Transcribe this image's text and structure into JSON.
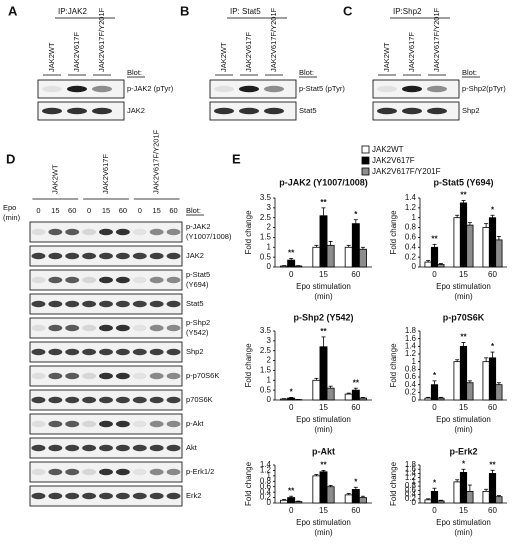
{
  "panels_abc": [
    {
      "letter": "A",
      "title": "IP:JAK2",
      "lanes": [
        "JAK2WT",
        "JAK2V617F",
        "JAK2V617F/Y201F"
      ],
      "blot_header": "Blot:",
      "blots": [
        "p-JAK2 (pTyr)",
        "JAK2"
      ]
    },
    {
      "letter": "B",
      "title": "IP: Stat5",
      "lanes": [
        "JAK2WT",
        "JAK2V617F",
        "JAK2V617F/Y201F"
      ],
      "blot_header": "Blot:",
      "blots": [
        "p-Stat5 (pTyr)",
        "Stat5"
      ]
    },
    {
      "letter": "C",
      "title": "IP:Shp2",
      "lanes": [
        "JAK2WT",
        "JAK2V617F",
        "JAK2V617F/Y201F"
      ],
      "blot_header": "Blot:",
      "blots": [
        "p-Shp2(pTyr)",
        "Shp2"
      ]
    }
  ],
  "panel_d": {
    "letter": "D",
    "epo": "Epo",
    "epo_unit": "(min)",
    "groups": [
      "JAK2WT",
      "JAK2V617F",
      "JAK2V617F/Y201F"
    ],
    "times": [
      "0",
      "15",
      "60"
    ],
    "blot_header": "Blot:",
    "blots": [
      [
        "p-JAK2",
        "(Y1007/1008)"
      ],
      [
        "JAK2"
      ],
      [
        "p-Stat5",
        "(Y694)"
      ],
      [
        "Stat5"
      ],
      [
        "p-Shp2",
        "(Y542)"
      ],
      [
        "Shp2"
      ],
      [
        "p-p70S6K"
      ],
      [
        "p70S6K"
      ],
      [
        "p-Akt"
      ],
      [
        "Akt"
      ],
      [
        "p-Erk1/2"
      ],
      [
        "Erk2"
      ]
    ]
  },
  "panel_e": {
    "letter": "E"
  },
  "chart_data": [
    {
      "type": "bar",
      "title": "p-JAK2 (Y1007/1008)",
      "y_label": "Fold change",
      "x_label": [
        "Epo stimulation",
        "(min)"
      ],
      "categories": [
        "0",
        "15",
        "60"
      ],
      "ylim": [
        0,
        3.5
      ],
      "yticks": [
        0,
        0.5,
        1,
        1.5,
        2,
        2.5,
        3,
        3.5
      ],
      "series": [
        {
          "name": "JAK2WT",
          "color": "#ffffff",
          "values": [
            0.05,
            1,
            1
          ],
          "errors": [
            0.02,
            0.1,
            0.1
          ],
          "stars": [
            null,
            null,
            null
          ]
        },
        {
          "name": "JAK2V617F",
          "color": "#000000",
          "values": [
            0.35,
            2.6,
            2.2
          ],
          "errors": [
            0.08,
            0.4,
            0.2
          ],
          "stars": [
            "**",
            "**",
            "*"
          ]
        },
        {
          "name": "JAK2V617F/Y201F",
          "color": "#8c8c8c",
          "values": [
            0.05,
            1.1,
            0.9
          ],
          "errors": [
            0.02,
            0.2,
            0.1
          ],
          "stars": [
            null,
            null,
            null
          ]
        }
      ]
    },
    {
      "type": "bar",
      "title": "p-Stat5 (Y694)",
      "y_label": "Fold change",
      "x_label": [
        "Epo stimulation",
        "(min)"
      ],
      "categories": [
        "0",
        "15",
        "60"
      ],
      "ylim": [
        0,
        1.4
      ],
      "yticks": [
        0,
        0.2,
        0.4,
        0.6,
        0.8,
        1,
        1.2,
        1.4
      ],
      "series": [
        {
          "color": "#ffffff",
          "values": [
            0.1,
            1,
            0.8
          ],
          "errors": [
            0.03,
            0.05,
            0.08
          ],
          "stars": [
            null,
            null,
            null
          ]
        },
        {
          "color": "#000000",
          "values": [
            0.4,
            1.3,
            1
          ],
          "errors": [
            0.06,
            0.05,
            0.05
          ],
          "stars": [
            "**",
            "**",
            "*"
          ]
        },
        {
          "color": "#8c8c8c",
          "values": [
            0.05,
            0.85,
            0.55
          ],
          "errors": [
            0.02,
            0.05,
            0.07
          ],
          "stars": [
            null,
            null,
            null
          ]
        }
      ]
    },
    {
      "type": "bar",
      "title": "p-Shp2 (Y542)",
      "y_label": "Fold change",
      "x_label": [
        "Epo stimulation",
        "(min)"
      ],
      "categories": [
        "0",
        "15",
        "60"
      ],
      "ylim": [
        0,
        3.5
      ],
      "yticks": [
        0,
        0.5,
        1,
        1.5,
        2,
        2.5,
        3,
        3.5
      ],
      "series": [
        {
          "color": "#ffffff",
          "values": [
            0.05,
            1,
            0.3
          ],
          "errors": [
            0.02,
            0.1,
            0.05
          ],
          "stars": [
            null,
            null,
            null
          ]
        },
        {
          "color": "#000000",
          "values": [
            0.1,
            2.7,
            0.5
          ],
          "errors": [
            0.03,
            0.5,
            0.1
          ],
          "stars": [
            "*",
            "**",
            "**"
          ]
        },
        {
          "color": "#8c8c8c",
          "values": [
            0.02,
            0.6,
            0.1
          ],
          "errors": [
            0.01,
            0.1,
            0.03
          ],
          "stars": [
            null,
            null,
            null
          ]
        }
      ]
    },
    {
      "type": "bar",
      "title": "p-p70S6K",
      "y_label": "Fold change",
      "x_label": [
        "Epo stimulation",
        "(min)"
      ],
      "categories": [
        "0",
        "15",
        "60"
      ],
      "ylim": [
        0,
        1.8
      ],
      "yticks": [
        0,
        0.2,
        0.4,
        0.6,
        0.8,
        1,
        1.2,
        1.4,
        1.6,
        1.8
      ],
      "series": [
        {
          "color": "#ffffff",
          "values": [
            0.05,
            1,
            1
          ],
          "errors": [
            0.02,
            0.05,
            0.1
          ],
          "stars": [
            null,
            null,
            null
          ]
        },
        {
          "color": "#000000",
          "values": [
            0.4,
            1.4,
            1.1
          ],
          "errors": [
            0.1,
            0.1,
            0.15
          ],
          "stars": [
            "*",
            "**",
            "*"
          ]
        },
        {
          "color": "#8c8c8c",
          "values": [
            0.05,
            0.45,
            0.4
          ],
          "errors": [
            0.02,
            0.05,
            0.05
          ],
          "stars": [
            null,
            null,
            null
          ]
        }
      ]
    },
    {
      "type": "bar",
      "title": "p-Akt",
      "y_label": "Fold change",
      "x_label": [
        "Epo stimulation",
        "(min)"
      ],
      "categories": [
        "0",
        "15",
        "60"
      ],
      "ylim": [
        0,
        1.4
      ],
      "yticks": [
        0,
        0.2,
        0.4,
        0.6,
        0.8,
        1,
        1.2,
        1.4
      ],
      "series": [
        {
          "color": "#ffffff",
          "values": [
            0.1,
            1,
            0.3
          ],
          "errors": [
            0.03,
            0.05,
            0.05
          ],
          "stars": [
            null,
            null,
            null
          ]
        },
        {
          "color": "#000000",
          "values": [
            0.2,
            1.15,
            0.5
          ],
          "errors": [
            0.05,
            0.05,
            0.08
          ],
          "stars": [
            "**",
            "**",
            "*"
          ]
        },
        {
          "color": "#8c8c8c",
          "values": [
            0.05,
            0.6,
            0.2
          ],
          "errors": [
            0.02,
            0.05,
            0.05
          ],
          "stars": [
            null,
            null,
            null
          ]
        }
      ]
    },
    {
      "type": "bar",
      "title": "p-Erk2",
      "y_label": "Fold change",
      "x_label": [
        "Epo stimulation",
        "(min)"
      ],
      "categories": [
        "0",
        "15",
        "60"
      ],
      "ylim": [
        0,
        1.8
      ],
      "yticks": [
        0,
        0.2,
        0.4,
        0.6,
        0.8,
        1,
        1.2,
        1.4,
        1.6,
        1.8
      ],
      "series": [
        {
          "color": "#ffffff",
          "values": [
            0.15,
            1,
            0.55
          ],
          "errors": [
            0.05,
            0.1,
            0.1
          ],
          "stars": [
            null,
            null,
            null
          ]
        },
        {
          "color": "#000000",
          "values": [
            0.55,
            1.45,
            1.4
          ],
          "errors": [
            0.15,
            0.15,
            0.15
          ],
          "stars": [
            "*",
            "*",
            "**"
          ]
        },
        {
          "color": "#8c8c8c",
          "values": [
            0.1,
            0.55,
            0.3
          ],
          "errors": [
            0.03,
            0.3,
            0.05
          ],
          "stars": [
            null,
            null,
            null
          ]
        }
      ]
    }
  ]
}
